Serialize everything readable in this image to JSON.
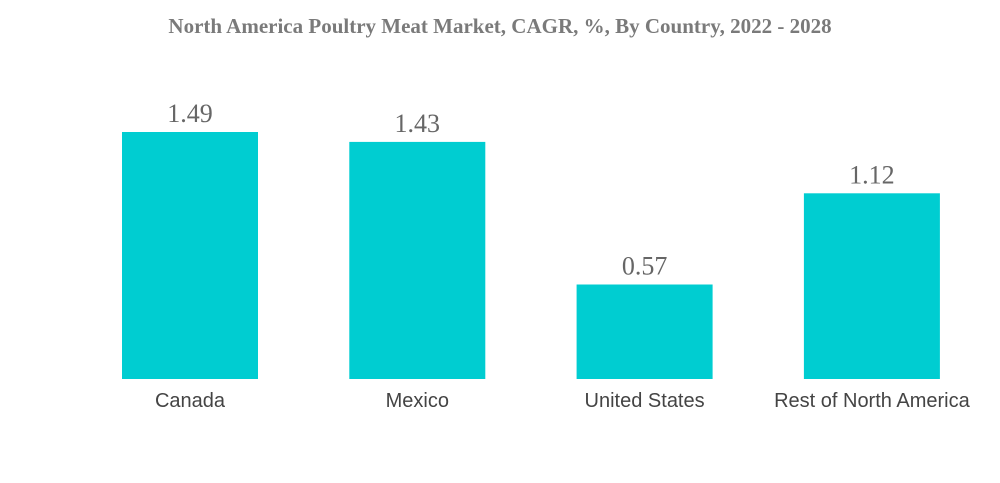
{
  "chart_data": {
    "type": "bar",
    "title": "North America Poultry Meat Market, CAGR, %, By Country, 2022 - 2028",
    "categories": [
      "Canada",
      "Mexico",
      "United States",
      "Rest of North America"
    ],
    "values": [
      1.49,
      1.43,
      0.57,
      1.12
    ],
    "value_labels": [
      "1.49",
      "1.43",
      "0.57",
      "1.12"
    ],
    "xlabel": "",
    "ylabel": "",
    "ylim": [
      0,
      1.49
    ],
    "grid": false,
    "legend": "none",
    "bar_color": "#00CDD1"
  }
}
